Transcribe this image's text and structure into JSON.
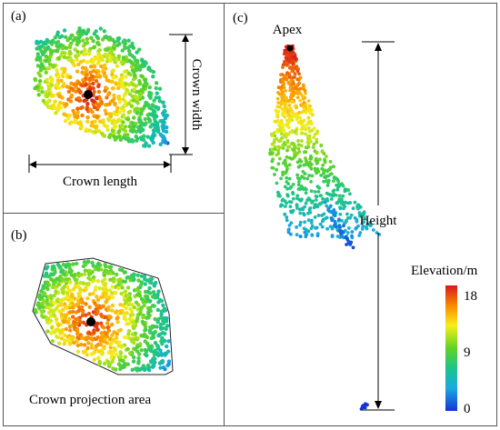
{
  "panels": {
    "a": {
      "label": "(a)",
      "crown_width_label": "Crown width",
      "crown_length_label": "Crown length"
    },
    "b": {
      "label": "(b)",
      "caption": "Crown projection area"
    },
    "c": {
      "label": "(c)",
      "apex_label": "Apex",
      "height_label": "Height"
    }
  },
  "colorbar": {
    "title": "Elevation/m",
    "ticks": [
      "18",
      "9",
      "0"
    ],
    "colors": [
      "#d7191c",
      "#f98a00",
      "#f7ef19",
      "#5fd325",
      "#1bc58a",
      "#1aa9e2",
      "#1534d6"
    ]
  }
}
